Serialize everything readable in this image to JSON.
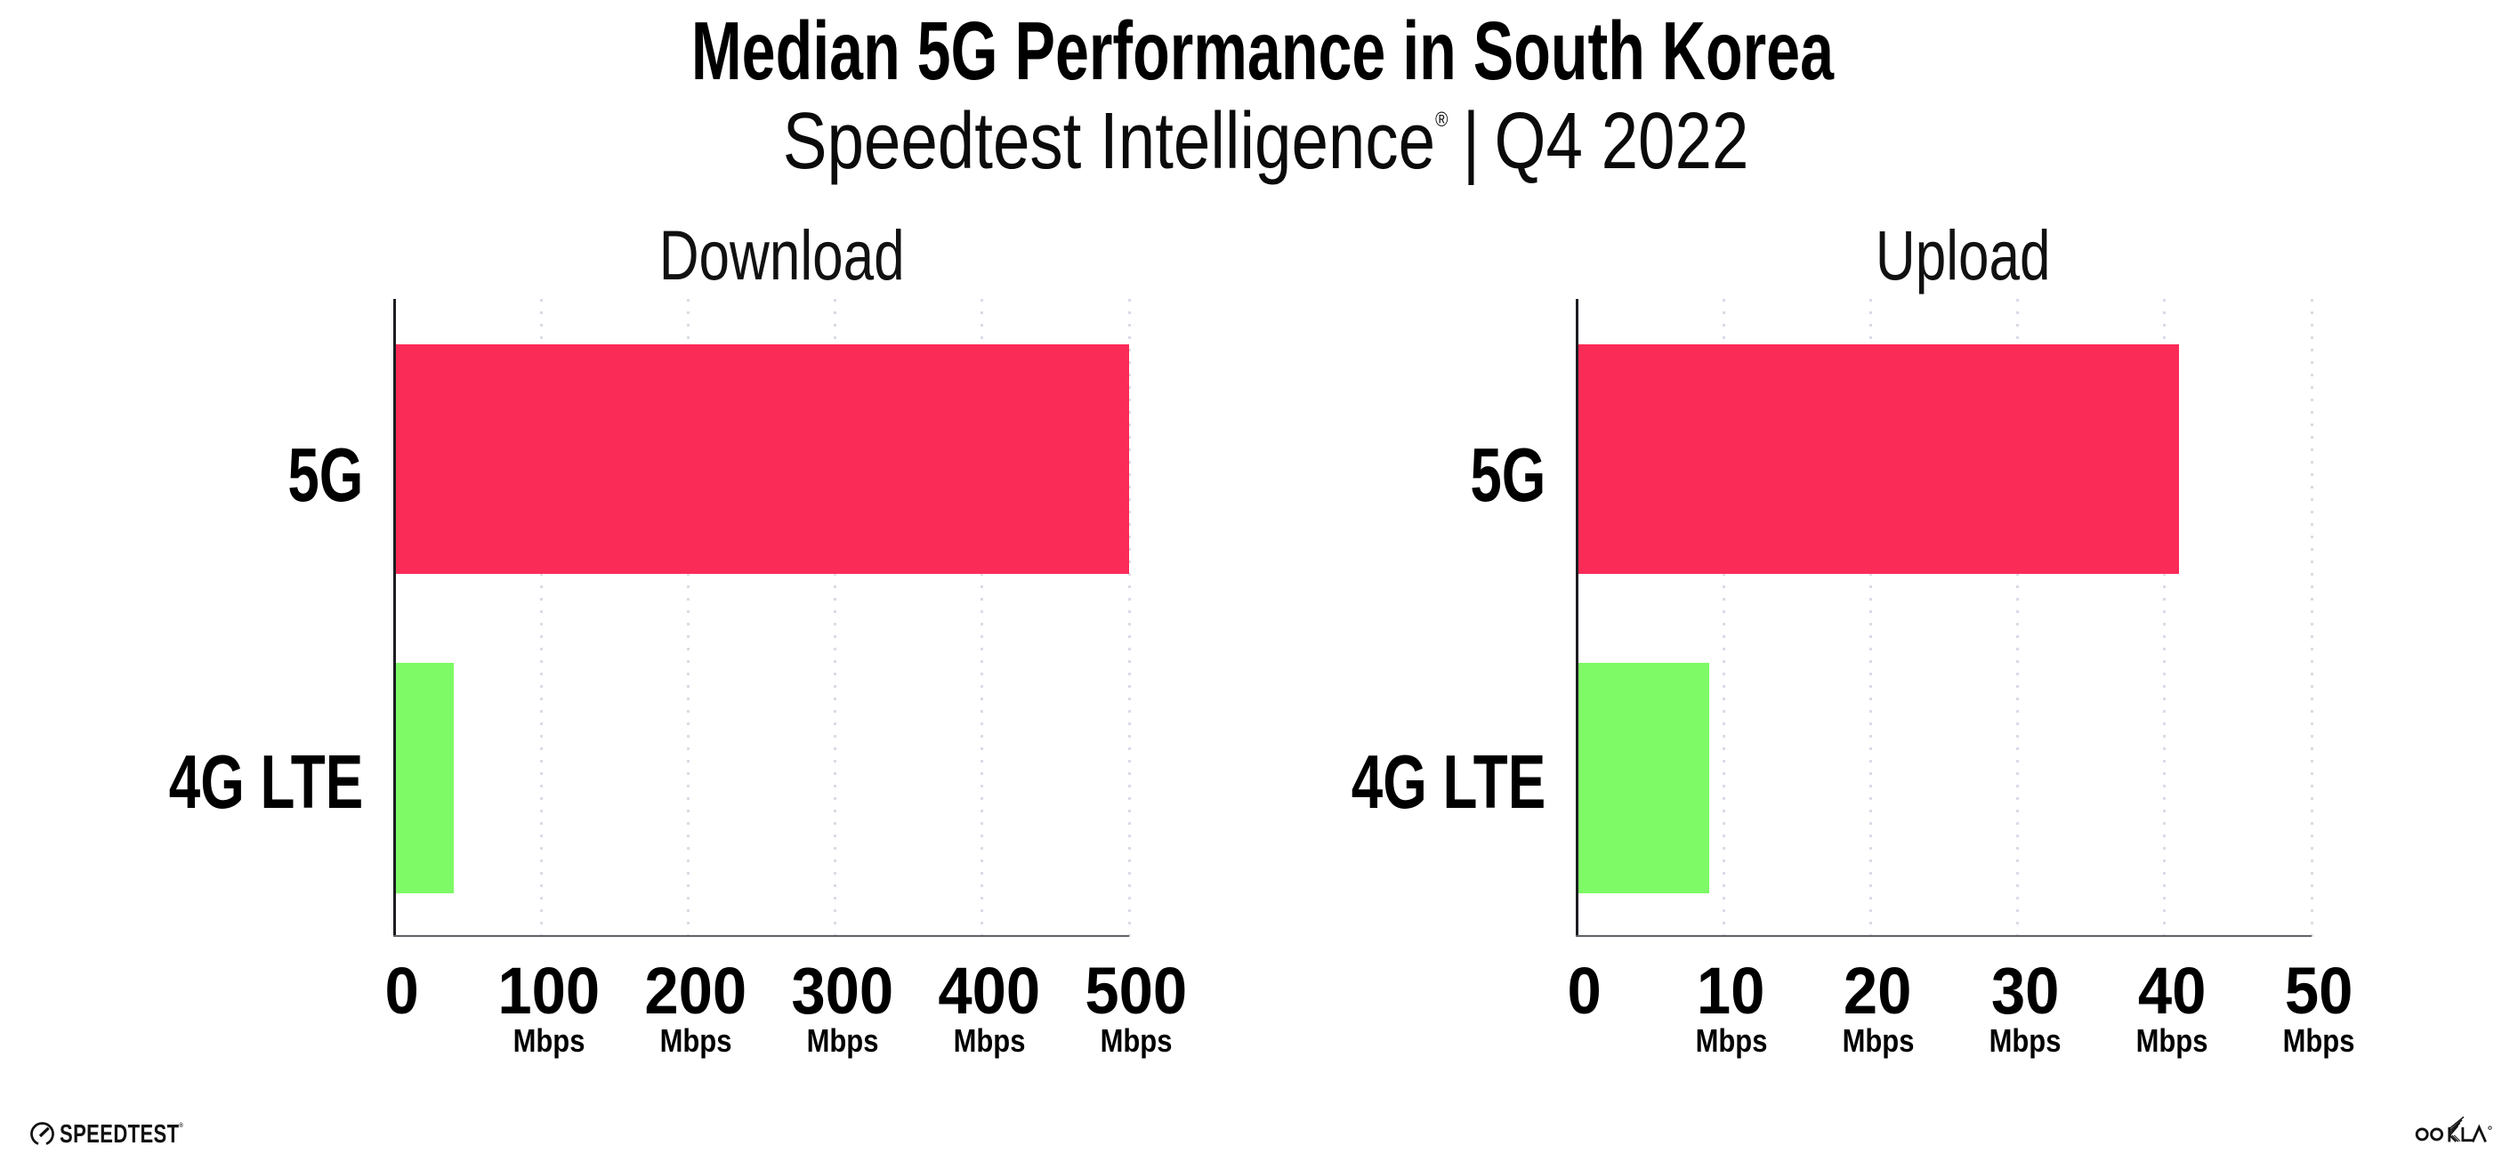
{
  "title": "Median 5G Performance in South Korea",
  "subtitle": {
    "brand": "Speedtest Intelligence",
    "reg_mark": "®",
    "separator": "|",
    "period": "Q4 2022"
  },
  "colors": {
    "bar_5g": "#fb2b58",
    "bar_4g": "#7efa66",
    "grid": "#d9dce6",
    "axis_y": "#1b1d21",
    "axis_x": "#616368",
    "text": "#000000"
  },
  "chart_data": [
    {
      "type": "bar",
      "orientation": "horizontal",
      "title": "Download",
      "categories": [
        "5G",
        "4G LTE"
      ],
      "values": [
        500,
        40
      ],
      "unit": "Mbps",
      "xticks": [
        0,
        100,
        200,
        300,
        400,
        500
      ],
      "xlim": [
        0,
        500
      ],
      "grid": true,
      "legend": false,
      "bar_colors": [
        "#fb2b58",
        "#7efa66"
      ]
    },
    {
      "type": "bar",
      "orientation": "horizontal",
      "title": "Upload",
      "categories": [
        "5G",
        "4G LTE"
      ],
      "values": [
        41,
        9
      ],
      "unit": "Mbps",
      "xticks": [
        0,
        10,
        20,
        30,
        40,
        50
      ],
      "xlim": [
        0,
        50
      ],
      "grid": true,
      "legend": false,
      "bar_colors": [
        "#fb2b58",
        "#7efa66"
      ]
    }
  ],
  "footer": {
    "speedtest_label": "SPEEDTEST",
    "speedtest_reg": "®",
    "ookla_label": "OOKLA",
    "ookla_reg": "®"
  }
}
